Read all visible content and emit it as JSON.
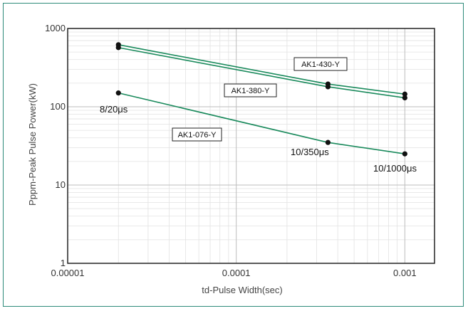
{
  "chart_data": {
    "type": "line",
    "xlabel": "td-Pulse Width(sec)",
    "ylabel": "Pppm-Peak Pulse Power(kW)",
    "x_scale": "log",
    "y_scale": "log",
    "xlim": [
      1e-05,
      0.0015
    ],
    "ylim": [
      1,
      1000
    ],
    "x_ticks": [
      "0.00001",
      "0.0001",
      "0.001"
    ],
    "y_ticks": [
      "1",
      "10",
      "100",
      "1000"
    ],
    "grid": true,
    "line_color": "#1a8a5c",
    "series": [
      {
        "name": "AK1-430-Y",
        "x": [
          2e-05,
          0.00035,
          0.001
        ],
        "y": [
          620,
          195,
          145
        ]
      },
      {
        "name": "AK1-380-Y",
        "x": [
          2e-05,
          0.00035,
          0.001
        ],
        "y": [
          570,
          180,
          130
        ]
      },
      {
        "name": "AK1-076-Y",
        "x": [
          2e-05,
          0.00035,
          0.001
        ],
        "y": [
          150,
          35,
          25
        ]
      }
    ],
    "annotations": [
      "8/20μs",
      "10/350μs",
      "10/1000μs"
    ]
  }
}
